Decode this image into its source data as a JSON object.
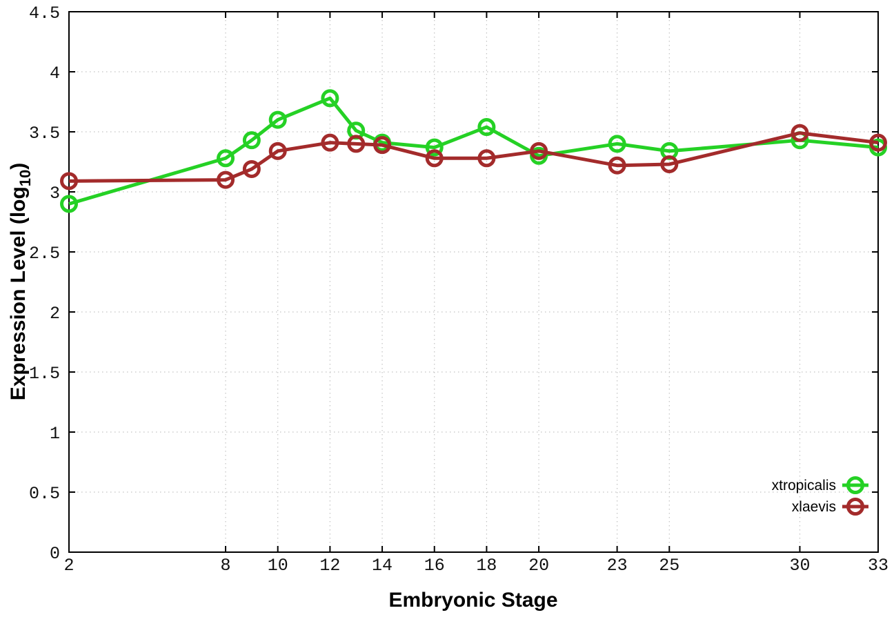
{
  "chart_data": {
    "type": "line",
    "title": "",
    "xlabel": "Embryonic Stage",
    "ylabel": "Expression Level (log10)",
    "ylabel_parts": {
      "prefix": "Expression Level (log",
      "sub": "10",
      "suffix": ")"
    },
    "x": [
      2,
      8,
      9,
      10,
      12,
      13,
      14,
      16,
      18,
      20,
      23,
      25,
      30,
      33
    ],
    "series": [
      {
        "name": "xtropicalis",
        "color": "#25d125",
        "marker": "open-circle",
        "values": [
          2.9,
          3.28,
          3.43,
          3.6,
          3.78,
          3.51,
          3.41,
          3.37,
          3.54,
          3.3,
          3.4,
          3.34,
          3.43,
          3.37
        ]
      },
      {
        "name": "xlaevis",
        "color": "#a32b2b",
        "marker": "open-circle",
        "values": [
          3.09,
          3.1,
          3.19,
          3.34,
          3.41,
          3.4,
          3.39,
          3.28,
          3.28,
          3.34,
          3.22,
          3.23,
          3.49,
          3.41
        ]
      }
    ],
    "xlim": [
      2,
      33
    ],
    "ylim": [
      0,
      4.5
    ],
    "x_ticks": [
      2,
      8,
      10,
      12,
      14,
      16,
      18,
      20,
      23,
      25,
      30,
      33
    ],
    "y_ticks": [
      "0",
      "0.5",
      "1",
      "1.5",
      "2",
      "2.5",
      "3",
      "3.5",
      "4",
      "4.5"
    ],
    "grid": true,
    "legend_position": "inside-bottom-right",
    "background_color": "#ffffff",
    "axis_color": "#000000",
    "grid_color": "#c2c2c2"
  }
}
